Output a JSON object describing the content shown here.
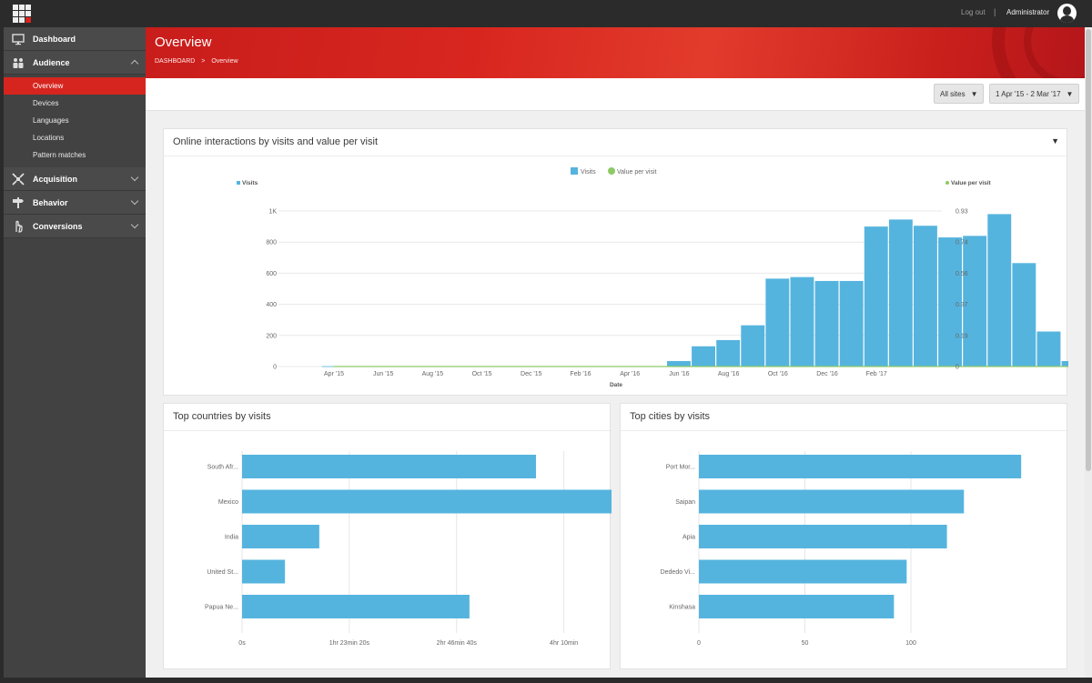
{
  "topbar": {
    "logout": "Log out",
    "separator": "|",
    "user": "Administrator"
  },
  "sidebar": {
    "items": [
      {
        "label": "Dashboard",
        "icon": "monitor-icon"
      },
      {
        "label": "Audience",
        "icon": "people-icon",
        "expanded": true
      },
      {
        "label": "Acquisition",
        "icon": "arrows-icon"
      },
      {
        "label": "Behavior",
        "icon": "signpost-icon"
      },
      {
        "label": "Conversions",
        "icon": "hand-icon"
      }
    ],
    "audience_children": [
      "Overview",
      "Devices",
      "Languages",
      "Locations",
      "Pattern matches"
    ],
    "active_child": "Overview"
  },
  "header": {
    "title": "Overview",
    "breadcrumb_root": "DASHBOARD",
    "breadcrumb_sep": ">",
    "breadcrumb_current": "Overview"
  },
  "filters": {
    "site": "All sites",
    "date_range": "1 Apr '15 - 2 Mar '17"
  },
  "colors": {
    "accent": "#d6251f",
    "bar": "#55b4de",
    "value_line": "#8ec965"
  },
  "panels": {
    "interactions_title": "Online interactions by visits and value per visit",
    "countries_title": "Top countries by visits",
    "cities_title": "Top cities by visits"
  },
  "chart_data": [
    {
      "type": "bar",
      "legend": [
        "Visits",
        "Value per visit"
      ],
      "left_axis_label": "Visits",
      "right_axis_label": "Value per visit",
      "xlabel": "Date",
      "y_ticks": [
        "0",
        "200",
        "400",
        "600",
        "800",
        "1K"
      ],
      "y2_ticks": [
        "0",
        "0.19",
        "0.37",
        "0.56",
        "0.74",
        "0.93"
      ],
      "ylim": [
        0,
        1000
      ],
      "x_ticks": [
        "Apr '15",
        "Jun '15",
        "Aug '15",
        "Oct '15",
        "Dec '15",
        "Feb '16",
        "Apr '16",
        "Jun '16",
        "Aug '16",
        "Oct '16",
        "Dec '16",
        "Feb '17"
      ],
      "series": [
        {
          "name": "Visits",
          "values": [
            2,
            2,
            2,
            2,
            2,
            2,
            2,
            2,
            2,
            2,
            2,
            2,
            2,
            2,
            35,
            130,
            170,
            265,
            565,
            575,
            550,
            550,
            900,
            945,
            905,
            830,
            840,
            980,
            665,
            225,
            35
          ]
        },
        {
          "name": "Value per visit",
          "values": [
            0,
            0,
            0,
            0,
            0,
            0,
            0,
            0,
            0,
            0,
            0,
            0,
            0,
            0,
            0,
            0,
            0,
            0,
            0,
            0,
            0,
            0,
            0,
            0,
            0,
            0,
            0,
            0,
            0,
            0,
            0
          ]
        }
      ],
      "grid": true
    },
    {
      "type": "bar",
      "orientation": "horizontal",
      "categories": [
        "South Afr...",
        "Mexico",
        "India",
        "United St...",
        "Papua Ne..."
      ],
      "values": [
        13700,
        19300,
        3600,
        2000,
        10600
      ],
      "x_tick_values": [
        0,
        5000,
        10000,
        15000
      ],
      "x_ticks": [
        "0s",
        "1hr 23min 20s",
        "2hr 46min 40s",
        "4hr 10min"
      ],
      "xlim": [
        0,
        20000
      ],
      "grid": true
    },
    {
      "type": "bar",
      "orientation": "horizontal",
      "categories": [
        "Port Mor...",
        "Saipan",
        "Apia",
        "Dededo Vi...",
        "Kinshasa"
      ],
      "values": [
        152,
        125,
        117,
        98,
        92
      ],
      "x_tick_values": [
        0,
        50,
        100
      ],
      "x_ticks": [
        "0",
        "50",
        "100"
      ],
      "xlim": [
        0,
        160
      ],
      "grid": true
    }
  ]
}
